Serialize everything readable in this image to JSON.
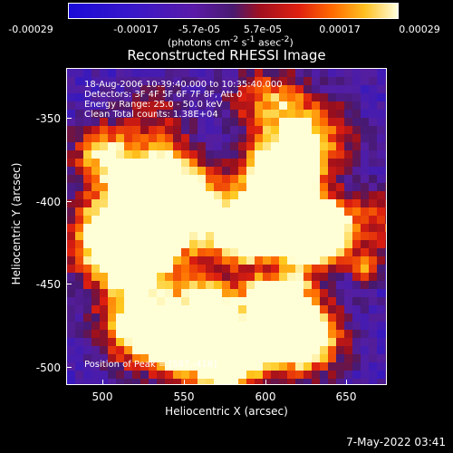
{
  "colorbar": {
    "tick_labels": [
      "-0.00029",
      "-0.00017",
      "-5.7e-05",
      "5.7e-05",
      "0.00017",
      "0.00029"
    ],
    "units_html": "(photons cm<sup>-2</sup> s<sup>-1</sup> asec<sup>-2</sup>)"
  },
  "title": "Reconstructed RHESSI Image",
  "info": {
    "line1": "18-Aug-2006 10:39:40.000 to 10:35:40.000",
    "line2": "Detectors: 3F 4F 5F 6F 7F 8F, Att 0",
    "line3": "Energy Range: 25.0 - 50.0 keV",
    "line4": "Clean     Total counts: 1.38E+04",
    "peak": "Position of Peak = [587,-418]"
  },
  "axes": {
    "xlabel": "Heliocentric X (arcsec)",
    "ylabel": "Heliocentric Y (arcsec)",
    "xticks": [
      "500",
      "550",
      "600",
      "650"
    ],
    "yticks": [
      "-350",
      "-400",
      "-450",
      "-500"
    ]
  },
  "timestamp": "7-May-2022 03:41",
  "colors": {
    "background": "#000000",
    "low": "#1010e0",
    "mid": "#6a20b0",
    "high": "#ffffc0"
  }
}
